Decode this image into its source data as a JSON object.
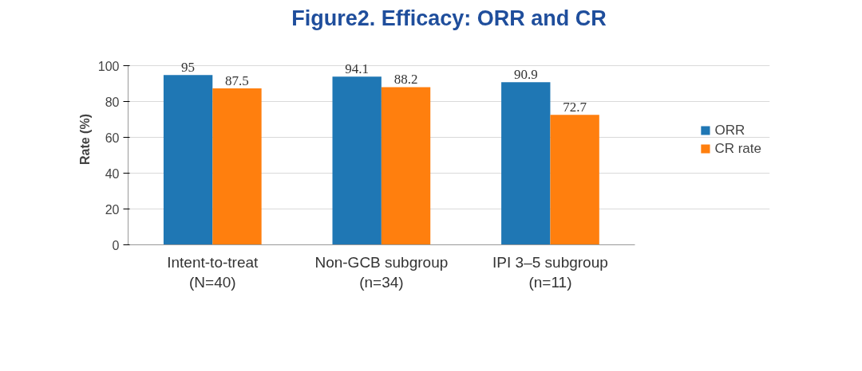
{
  "chart_data": {
    "type": "bar",
    "title": "Figure2. Efficacy: ORR and CR",
    "ylabel": "Rate (%)",
    "categories": [
      "Intent-to-treat\n(N=40)",
      "Non-GCB subgroup\n(n=34)",
      "IPI 3–5 subgroup\n(n=11)"
    ],
    "series": [
      {
        "name": "ORR",
        "color": "#1f77b4",
        "values": [
          95,
          94.1,
          90.9
        ]
      },
      {
        "name": "CR rate",
        "color": "#ff7f0e",
        "values": [
          87.5,
          88.2,
          72.7
        ]
      }
    ],
    "ylim": [
      0,
      100
    ],
    "yticks": [
      0,
      20,
      40,
      60,
      80,
      100
    ],
    "grid": "y",
    "legend": "right",
    "data_labels": true
  }
}
